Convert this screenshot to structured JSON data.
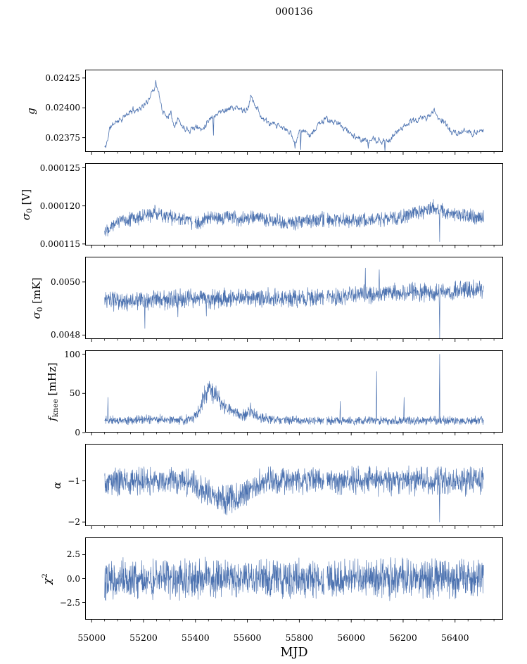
{
  "title": "000136",
  "chart_data": {
    "type": "line",
    "title": "000136",
    "xlabel": "MJD",
    "line_color": "#4c72b0",
    "x": {
      "lim": [
        54975,
        56585
      ],
      "ticks": [
        55000,
        55200,
        55400,
        55600,
        55800,
        56000,
        56200,
        56400
      ],
      "tick_labels": [
        "55000",
        "55200",
        "55400",
        "55600",
        "55800",
        "56000",
        "56200",
        "56400"
      ],
      "minor_step": 50,
      "data_range": [
        55050,
        56510
      ]
    },
    "panels": [
      {
        "id": "g",
        "ylabel_text": "g",
        "ylabel_parts": [
          {
            "t": "g",
            "i": 1
          }
        ],
        "ylim": [
          0.02363,
          0.02432
        ],
        "yticks": [
          {
            "v": 0.02375,
            "label": "0.02375"
          },
          {
            "v": 0.024,
            "label": "0.02400"
          },
          {
            "v": 0.02425,
            "label": "0.02425"
          }
        ],
        "trend": [
          [
            55055,
            0.02367
          ],
          [
            55070,
            0.02383
          ],
          [
            55090,
            0.02388
          ],
          [
            55120,
            0.02391
          ],
          [
            55150,
            0.02397
          ],
          [
            55180,
            0.02399
          ],
          [
            55210,
            0.02403
          ],
          [
            55235,
            0.02415
          ],
          [
            55250,
            0.02419
          ],
          [
            55262,
            0.02408
          ],
          [
            55275,
            0.02396
          ],
          [
            55290,
            0.02393
          ],
          [
            55305,
            0.02396
          ],
          [
            55318,
            0.02386
          ],
          [
            55332,
            0.02391
          ],
          [
            55350,
            0.02384
          ],
          [
            55375,
            0.02382
          ],
          [
            55400,
            0.02384
          ],
          [
            55425,
            0.02382
          ],
          [
            55450,
            0.0239
          ],
          [
            55480,
            0.02395
          ],
          [
            55510,
            0.02398
          ],
          [
            55540,
            0.024
          ],
          [
            55570,
            0.02399
          ],
          [
            55600,
            0.02397
          ],
          [
            55615,
            0.02411
          ],
          [
            55632,
            0.02402
          ],
          [
            55655,
            0.02392
          ],
          [
            55680,
            0.02387
          ],
          [
            55710,
            0.02385
          ],
          [
            55740,
            0.02383
          ],
          [
            55765,
            0.02379
          ],
          [
            55782,
            0.02371
          ],
          [
            55800,
            0.0238
          ],
          [
            55825,
            0.02379
          ],
          [
            55850,
            0.02378
          ],
          [
            55872,
            0.02386
          ],
          [
            55895,
            0.0239
          ],
          [
            55920,
            0.02389
          ],
          [
            55945,
            0.02387
          ],
          [
            55970,
            0.02384
          ],
          [
            56000,
            0.02378
          ],
          [
            56030,
            0.02374
          ],
          [
            56060,
            0.02372
          ],
          [
            56090,
            0.02373
          ],
          [
            56120,
            0.02371
          ],
          [
            56150,
            0.02373
          ],
          [
            56180,
            0.02381
          ],
          [
            56210,
            0.02386
          ],
          [
            56240,
            0.02389
          ],
          [
            56270,
            0.02391
          ],
          [
            56300,
            0.02393
          ],
          [
            56320,
            0.02397
          ],
          [
            56340,
            0.02391
          ],
          [
            56360,
            0.02388
          ],
          [
            56385,
            0.0238
          ],
          [
            56410,
            0.02378
          ],
          [
            56440,
            0.0238
          ],
          [
            56470,
            0.02379
          ],
          [
            56500,
            0.02381
          ]
        ],
        "noise": 3.5e-05,
        "smooth": 0.5,
        "samples": 1000,
        "seed": 11,
        "stroke": 0.8,
        "spikes": [
          [
            55247,
            0.02423
          ],
          [
            55470,
            0.02377
          ],
          [
            55783,
            0.02366
          ],
          [
            55806,
            0.02365
          ],
          [
            56065,
            0.02366
          ],
          [
            56130,
            0.02364
          ]
        ],
        "gaps": []
      },
      {
        "id": "sigma0-v",
        "ylabel_text": "σ0 [V]",
        "ylabel_parts": [
          {
            "t": "σ",
            "i": 1
          },
          {
            "t": "0",
            "sub": 1
          },
          {
            "t": " [V]"
          }
        ],
        "ylim": [
          0.0001148,
          0.0001256
        ],
        "yticks": [
          {
            "v": 0.000115,
            "label": "0.000115"
          },
          {
            "v": 0.00012,
            "label": "0.000120"
          },
          {
            "v": 0.000125,
            "label": "0.000125"
          }
        ],
        "trend": [
          [
            55055,
            0.0001169
          ],
          [
            55080,
            0.0001176
          ],
          [
            55110,
            0.0001181
          ],
          [
            55150,
            0.0001183
          ],
          [
            55200,
            0.0001186
          ],
          [
            55245,
            0.0001191
          ],
          [
            55285,
            0.0001187
          ],
          [
            55330,
            0.0001183
          ],
          [
            55370,
            0.0001182
          ],
          [
            55398,
            0.0001177
          ],
          [
            55430,
            0.0001181
          ],
          [
            55470,
            0.0001183
          ],
          [
            55520,
            0.0001185
          ],
          [
            55570,
            0.0001184
          ],
          [
            55620,
            0.0001185
          ],
          [
            55665,
            0.0001183
          ],
          [
            55710,
            0.000118
          ],
          [
            55755,
            0.0001177
          ],
          [
            55800,
            0.000118
          ],
          [
            55850,
            0.000118
          ],
          [
            55890,
            0.0001182
          ],
          [
            55930,
            0.0001181
          ],
          [
            55980,
            0.000118
          ],
          [
            56030,
            0.0001181
          ],
          [
            56080,
            0.0001182
          ],
          [
            56130,
            0.0001183
          ],
          [
            56180,
            0.0001185
          ],
          [
            56230,
            0.0001188
          ],
          [
            56280,
            0.0001194
          ],
          [
            56310,
            0.0001199
          ],
          [
            56335,
            0.0001196
          ],
          [
            56365,
            0.0001191
          ],
          [
            56400,
            0.0001189
          ],
          [
            56450,
            0.0001186
          ],
          [
            56500,
            0.0001185
          ]
        ],
        "noise": 1.15e-06,
        "smooth": 0,
        "samples": 1450,
        "seed": 22,
        "stroke": 0.65,
        "spikes": [
          [
            56341,
            0.0001153
          ]
        ],
        "gaps": [
          [
            55388,
            55396
          ],
          [
            55896,
            55906
          ]
        ]
      },
      {
        "id": "sigma0-mk",
        "ylabel_text": "σ0 [mK]",
        "ylabel_parts": [
          {
            "t": "σ",
            "i": 1
          },
          {
            "t": "0",
            "sub": 1
          },
          {
            "t": " [mK]"
          }
        ],
        "ylim": [
          0.004785,
          0.005095
        ],
        "yticks": [
          {
            "v": 0.0048,
            "label": "0.0048"
          },
          {
            "v": 0.005,
            "label": "0.0050"
          }
        ],
        "trend": [
          [
            55055,
            0.00493
          ],
          [
            55120,
            0.004926
          ],
          [
            55180,
            0.004929
          ],
          [
            55240,
            0.004931
          ],
          [
            55300,
            0.00493
          ],
          [
            55360,
            0.004937
          ],
          [
            55420,
            0.004939
          ],
          [
            55480,
            0.004936
          ],
          [
            55540,
            0.004938
          ],
          [
            55600,
            0.004941
          ],
          [
            55660,
            0.004941
          ],
          [
            55720,
            0.004938
          ],
          [
            55780,
            0.004939
          ],
          [
            55840,
            0.004941
          ],
          [
            55900,
            0.004944
          ],
          [
            55960,
            0.004946
          ],
          [
            56020,
            0.004951
          ],
          [
            56080,
            0.004954
          ],
          [
            56140,
            0.004957
          ],
          [
            56200,
            0.004959
          ],
          [
            56260,
            0.00496
          ],
          [
            56320,
            0.004963
          ],
          [
            56380,
            0.004966
          ],
          [
            56440,
            0.004967
          ],
          [
            56500,
            0.004969
          ]
        ],
        "noise": 4.2e-05,
        "smooth": 0,
        "samples": 1450,
        "seed": 33,
        "stroke": 0.65,
        "spikes": [
          [
            55205,
            0.004825
          ],
          [
            55332,
            0.004868
          ],
          [
            55442,
            0.004872
          ],
          [
            56055,
            0.005052
          ],
          [
            56108,
            0.005046
          ],
          [
            56341,
            0.004782
          ]
        ],
        "gaps": [
          [
            55896,
            55906
          ]
        ]
      },
      {
        "id": "fknee",
        "ylabel_text": "fknee [mHz]",
        "ylabel_parts": [
          {
            "t": "f",
            "i": 1
          },
          {
            "t": "knee",
            "sub": 1
          },
          {
            "t": " [mHz]"
          }
        ],
        "ylim": [
          0,
          105
        ],
        "yticks": [
          {
            "v": 0,
            "label": "0"
          },
          {
            "v": 50,
            "label": "50"
          },
          {
            "v": 100,
            "label": "100"
          }
        ],
        "trend": [
          [
            55055,
            16
          ],
          [
            55120,
            15
          ],
          [
            55180,
            16
          ],
          [
            55240,
            17
          ],
          [
            55300,
            17
          ],
          [
            55350,
            16
          ],
          [
            55390,
            18
          ],
          [
            55408,
            24
          ],
          [
            55425,
            40
          ],
          [
            55440,
            52
          ],
          [
            55455,
            55
          ],
          [
            55470,
            50
          ],
          [
            55485,
            44
          ],
          [
            55500,
            38
          ],
          [
            55515,
            33
          ],
          [
            55535,
            28
          ],
          [
            55560,
            24
          ],
          [
            55585,
            22
          ],
          [
            55605,
            26
          ],
          [
            55625,
            24
          ],
          [
            55645,
            20
          ],
          [
            55670,
            18
          ],
          [
            55700,
            17
          ],
          [
            55750,
            16
          ],
          [
            55800,
            16
          ],
          [
            55850,
            15
          ],
          [
            55900,
            15
          ],
          [
            55950,
            16
          ],
          [
            56000,
            15
          ],
          [
            56050,
            15
          ],
          [
            56100,
            16
          ],
          [
            56150,
            15
          ],
          [
            56200,
            16
          ],
          [
            56250,
            15
          ],
          [
            56300,
            15
          ],
          [
            56350,
            16
          ],
          [
            56400,
            15
          ],
          [
            56450,
            15
          ],
          [
            56500,
            16
          ]
        ],
        "noise": 1.8,
        "noise_rel": 0.3,
        "smooth": 0,
        "samples": 1450,
        "seed": 44,
        "stroke": 0.65,
        "spikes": [
          [
            55063,
            45
          ],
          [
            55612,
            38
          ],
          [
            55958,
            40
          ],
          [
            56098,
            78
          ],
          [
            56204,
            45
          ],
          [
            56341,
            100
          ]
        ],
        "gaps": [
          [
            55896,
            55906
          ]
        ]
      },
      {
        "id": "alpha",
        "ylabel_text": "α",
        "ylabel_parts": [
          {
            "t": "α",
            "i": 1
          }
        ],
        "ylim": [
          -2.1,
          -0.1
        ],
        "yticks": [
          {
            "v": -2,
            "label": "−2"
          },
          {
            "v": -1,
            "label": "−1"
          }
        ],
        "trend": [
          [
            55055,
            -1.0
          ],
          [
            55340,
            -1.0
          ],
          [
            55385,
            -1.05
          ],
          [
            55420,
            -1.18
          ],
          [
            55455,
            -1.33
          ],
          [
            55490,
            -1.44
          ],
          [
            55525,
            -1.45
          ],
          [
            55560,
            -1.4
          ],
          [
            55590,
            -1.3
          ],
          [
            55620,
            -1.15
          ],
          [
            55650,
            -1.05
          ],
          [
            55690,
            -1.0
          ],
          [
            56500,
            -1.0
          ]
        ],
        "noise": 0.4,
        "smooth": 0,
        "samples": 1500,
        "seed": 55,
        "stroke": 0.65,
        "spikes": [
          [
            56341,
            -2.0
          ]
        ],
        "gaps": [
          [
            55896,
            55906
          ]
        ]
      },
      {
        "id": "chi2",
        "ylabel_text": "χ2",
        "ylabel_parts": [
          {
            "t": "χ",
            "i": 1
          },
          {
            "t": "2",
            "sup": 1
          }
        ],
        "ylim": [
          -4.3,
          4.3
        ],
        "yticks": [
          {
            "v": -2.5,
            "label": "−2.5"
          },
          {
            "v": 0,
            "label": "0.0"
          },
          {
            "v": 2.5,
            "label": "2.5"
          }
        ],
        "trend": [
          [
            55055,
            0
          ],
          [
            56500,
            0
          ]
        ],
        "noise": 2.35,
        "smooth": 0,
        "samples": 1600,
        "seed": 66,
        "stroke": 0.65,
        "spikes": [],
        "gaps": [
          [
            55896,
            55906
          ]
        ]
      }
    ]
  }
}
